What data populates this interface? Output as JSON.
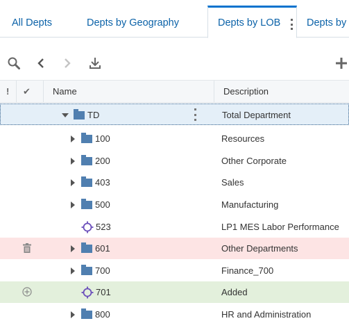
{
  "tabs": [
    {
      "label": "All Depts"
    },
    {
      "label": "Depts by Geography"
    },
    {
      "label": "Depts by LOB"
    },
    {
      "label": "Depts by"
    }
  ],
  "toolbar": {
    "search_icon": "search-icon",
    "back_icon": "chevron-left-icon",
    "forward_icon": "chevron-right-icon",
    "download_icon": "download-icon",
    "add_icon": "plus-icon"
  },
  "table": {
    "headers": {
      "alert": "!",
      "check": "✔",
      "name": "Name",
      "description": "Description"
    },
    "rows": [
      {
        "name": "TD",
        "description": "Total Department",
        "type": "folder",
        "expanded": true,
        "state": "selected"
      },
      {
        "name": "100",
        "description": "Resources",
        "type": "folder",
        "expanded": false,
        "state": "normal"
      },
      {
        "name": "200",
        "description": "Other Corporate",
        "type": "folder",
        "expanded": false,
        "state": "normal"
      },
      {
        "name": "403",
        "description": "Sales",
        "type": "folder",
        "expanded": false,
        "state": "normal"
      },
      {
        "name": "500",
        "description": "Manufacturing",
        "type": "folder",
        "expanded": false,
        "state": "normal"
      },
      {
        "name": "523",
        "description": "LP1 MES Labor Performance",
        "type": "leaf",
        "state": "normal"
      },
      {
        "name": "601",
        "description": "Other Departments",
        "type": "folder",
        "expanded": false,
        "state": "deleted"
      },
      {
        "name": "700",
        "description": "Finance_700",
        "type": "folder",
        "expanded": false,
        "state": "normal"
      },
      {
        "name": "701",
        "description": "Added",
        "type": "leaf",
        "state": "added"
      },
      {
        "name": "800",
        "description": "HR and Administration",
        "type": "folder",
        "expanded": false,
        "state": "normal"
      }
    ]
  },
  "colors": {
    "accent": "#0572ce",
    "tab_text": "#0b62a8",
    "selected_row": "#e4eff8",
    "deleted_row": "#fde4e4",
    "added_row": "#e3f0dc",
    "folder": "#507fb0",
    "leaf_icon": "#6b4fbb"
  }
}
